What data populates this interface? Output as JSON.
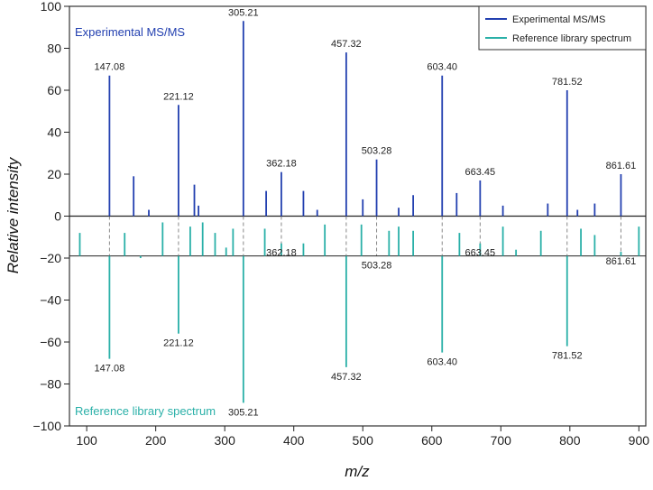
{
  "chart_data": {
    "type": "bar",
    "subtype": "mirror mass spectrum",
    "xlabel": "m/z",
    "ylabel": "Relative intensity",
    "xlim": [
      75,
      910
    ],
    "ylim": [
      -100,
      100
    ],
    "x_ticks": [
      100,
      200,
      300,
      400,
      500,
      600,
      700,
      800,
      900
    ],
    "y_ticks": [
      -100,
      -80,
      -60,
      -40,
      -20,
      0,
      20,
      40,
      60,
      80,
      100
    ],
    "grid": false,
    "legend_position": "top-right",
    "annotations": {
      "top": "Experimental MS/MS",
      "bottom": "Reference library spectrum"
    },
    "colors": {
      "experimental": "#2340b0",
      "reference": "#2ab0a8",
      "axis": "#222222",
      "guide": "#888888"
    },
    "matched_peaks": [
      147.08,
      221.12,
      305.21,
      362.18,
      457.32,
      503.28,
      603.4,
      663.45,
      781.52,
      861.61
    ],
    "series": [
      {
        "name": "Experimental MS/MS",
        "direction": "up",
        "peaks": [
          {
            "x": 133,
            "y": 67,
            "label": "147.08"
          },
          {
            "x": 168,
            "y": 19
          },
          {
            "x": 190,
            "y": 3
          },
          {
            "x": 233,
            "y": 53,
            "label": "221.12"
          },
          {
            "x": 256,
            "y": 15
          },
          {
            "x": 262,
            "y": 5
          },
          {
            "x": 327,
            "y": 93,
            "label": "305.21"
          },
          {
            "x": 360,
            "y": 12
          },
          {
            "x": 382,
            "y": 21,
            "label": "362.18"
          },
          {
            "x": 414,
            "y": 12
          },
          {
            "x": 434,
            "y": 3
          },
          {
            "x": 476,
            "y": 78,
            "label": "457.32"
          },
          {
            "x": 500,
            "y": 8
          },
          {
            "x": 520,
            "y": 27,
            "label": "503.28"
          },
          {
            "x": 552,
            "y": 4
          },
          {
            "x": 573,
            "y": 10
          },
          {
            "x": 615,
            "y": 67,
            "label": "603.40"
          },
          {
            "x": 636,
            "y": 11
          },
          {
            "x": 670,
            "y": 17,
            "label": "663.45"
          },
          {
            "x": 703,
            "y": 5
          },
          {
            "x": 768,
            "y": 6
          },
          {
            "x": 796,
            "y": 60,
            "label": "781.52"
          },
          {
            "x": 811,
            "y": 3
          },
          {
            "x": 836,
            "y": 6
          },
          {
            "x": 874,
            "y": 20,
            "label": "861.61"
          }
        ]
      },
      {
        "name": "Reference library spectrum",
        "direction": "down",
        "peaks": [
          {
            "x": 90,
            "y": -8
          },
          {
            "x": 133,
            "y": -68,
            "label": "147.08"
          },
          {
            "x": 155,
            "y": -8
          },
          {
            "x": 178,
            "y": -20
          },
          {
            "x": 210,
            "y": -3
          },
          {
            "x": 233,
            "y": -56,
            "label": "221.12"
          },
          {
            "x": 250,
            "y": -5
          },
          {
            "x": 268,
            "y": -3
          },
          {
            "x": 286,
            "y": -8
          },
          {
            "x": 302,
            "y": -15
          },
          {
            "x": 312,
            "y": -6
          },
          {
            "x": 327,
            "y": -89,
            "label": "305.21"
          },
          {
            "x": 358,
            "y": -6
          },
          {
            "x": 382,
            "y": -13,
            "label": "362.18"
          },
          {
            "x": 414,
            "y": -13
          },
          {
            "x": 445,
            "y": -4
          },
          {
            "x": 476,
            "y": -72,
            "label": "457.32"
          },
          {
            "x": 498,
            "y": -4
          },
          {
            "x": 520,
            "y": -19,
            "label": "503.28"
          },
          {
            "x": 538,
            "y": -7
          },
          {
            "x": 552,
            "y": -5
          },
          {
            "x": 573,
            "y": -7
          },
          {
            "x": 615,
            "y": -65,
            "label": "603.40"
          },
          {
            "x": 640,
            "y": -8
          },
          {
            "x": 670,
            "y": -13,
            "label": "663.45"
          },
          {
            "x": 703,
            "y": -5
          },
          {
            "x": 722,
            "y": -16
          },
          {
            "x": 758,
            "y": -7
          },
          {
            "x": 796,
            "y": -62,
            "label": "781.52"
          },
          {
            "x": 816,
            "y": -6
          },
          {
            "x": 836,
            "y": -9
          },
          {
            "x": 874,
            "y": -17,
            "label": "861.61"
          },
          {
            "x": 900,
            "y": -5
          }
        ]
      }
    ]
  }
}
